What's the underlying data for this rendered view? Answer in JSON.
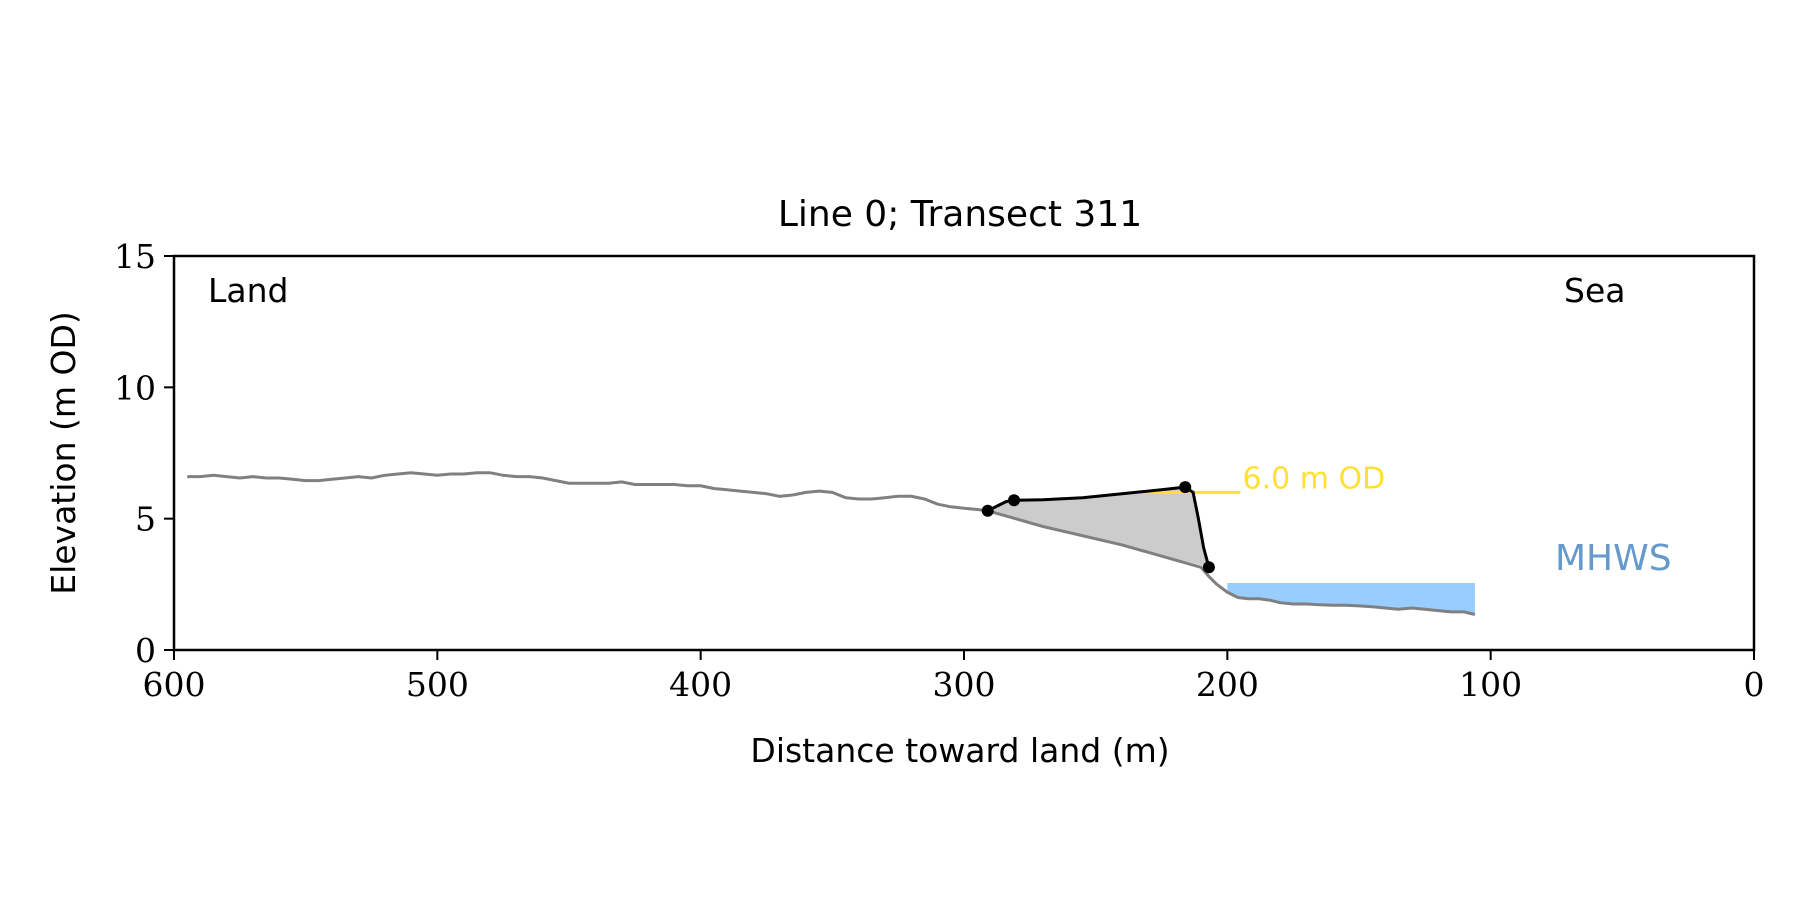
{
  "chart_data": {
    "type": "line",
    "title": "Line 0; Transect 311",
    "xlabel": "Distance toward land (m)",
    "ylabel": "Elevation (m OD)",
    "xlim": [
      600,
      0
    ],
    "ylim": [
      0,
      15
    ],
    "x_ticks": [
      600,
      500,
      400,
      300,
      200,
      100,
      0
    ],
    "y_ticks": [
      0,
      5,
      10,
      15
    ],
    "grid": false,
    "annotations": {
      "land_label": "Land",
      "sea_label": "Sea",
      "od_label": "6.0 m OD",
      "mhws_label": "MHWS"
    },
    "colors": {
      "profile": "#808080",
      "feature": "#000000",
      "fill": "#cccccc",
      "od_line": "#ffe033",
      "mhws": "#99ccff",
      "mhws_text": "#6699cc"
    },
    "series": [
      {
        "role": "elevation-profile",
        "x": [
          595,
          590,
          585,
          580,
          575,
          570,
          565,
          560,
          555,
          550,
          545,
          540,
          535,
          530,
          525,
          520,
          515,
          510,
          505,
          500,
          495,
          490,
          485,
          480,
          475,
          470,
          465,
          460,
          455,
          450,
          445,
          440,
          435,
          430,
          425,
          420,
          415,
          410,
          405,
          400,
          395,
          390,
          385,
          380,
          375,
          370,
          365,
          360,
          355,
          350,
          345,
          340,
          335,
          330,
          325,
          320,
          315,
          310,
          305,
          300,
          295,
          291,
          270,
          240,
          210,
          207,
          204,
          200,
          196,
          192,
          188,
          184,
          180,
          175,
          170,
          165,
          160,
          155,
          150,
          145,
          140,
          135,
          130,
          125,
          120,
          115,
          110,
          106
        ],
        "y": [
          6.6,
          6.6,
          6.65,
          6.6,
          6.55,
          6.6,
          6.55,
          6.55,
          6.5,
          6.45,
          6.45,
          6.5,
          6.55,
          6.6,
          6.55,
          6.65,
          6.7,
          6.75,
          6.7,
          6.65,
          6.7,
          6.7,
          6.75,
          6.75,
          6.65,
          6.6,
          6.6,
          6.55,
          6.45,
          6.35,
          6.35,
          6.35,
          6.35,
          6.4,
          6.3,
          6.3,
          6.3,
          6.3,
          6.25,
          6.25,
          6.15,
          6.1,
          6.05,
          6.0,
          5.95,
          5.85,
          5.9,
          6.0,
          6.05,
          6.0,
          5.8,
          5.75,
          5.75,
          5.8,
          5.85,
          5.85,
          5.75,
          5.55,
          5.45,
          5.4,
          5.35,
          5.3,
          4.7,
          4.0,
          3.15,
          2.8,
          2.5,
          2.2,
          2.0,
          1.95,
          1.95,
          1.9,
          1.8,
          1.75,
          1.75,
          1.72,
          1.7,
          1.7,
          1.68,
          1.65,
          1.6,
          1.55,
          1.6,
          1.55,
          1.5,
          1.45,
          1.45,
          1.35
        ]
      },
      {
        "role": "feature-crest-line",
        "x": [
          291,
          287,
          284,
          281,
          270,
          255,
          240,
          225,
          216,
          213,
          211,
          209,
          207
        ],
        "y": [
          5.3,
          5.5,
          5.65,
          5.7,
          5.72,
          5.8,
          5.95,
          6.1,
          6.2,
          6.0,
          5.0,
          3.9,
          3.15
        ]
      }
    ],
    "markers": [
      {
        "x": 291,
        "y": 5.3
      },
      {
        "x": 281,
        "y": 5.7
      },
      {
        "x": 216,
        "y": 6.2
      },
      {
        "x": 207,
        "y": 3.15
      }
    ],
    "od_line": {
      "x": [
        235,
        195
      ],
      "y": 6.0
    },
    "mhws": {
      "x": [
        200,
        106
      ],
      "top": 2.55
    }
  }
}
